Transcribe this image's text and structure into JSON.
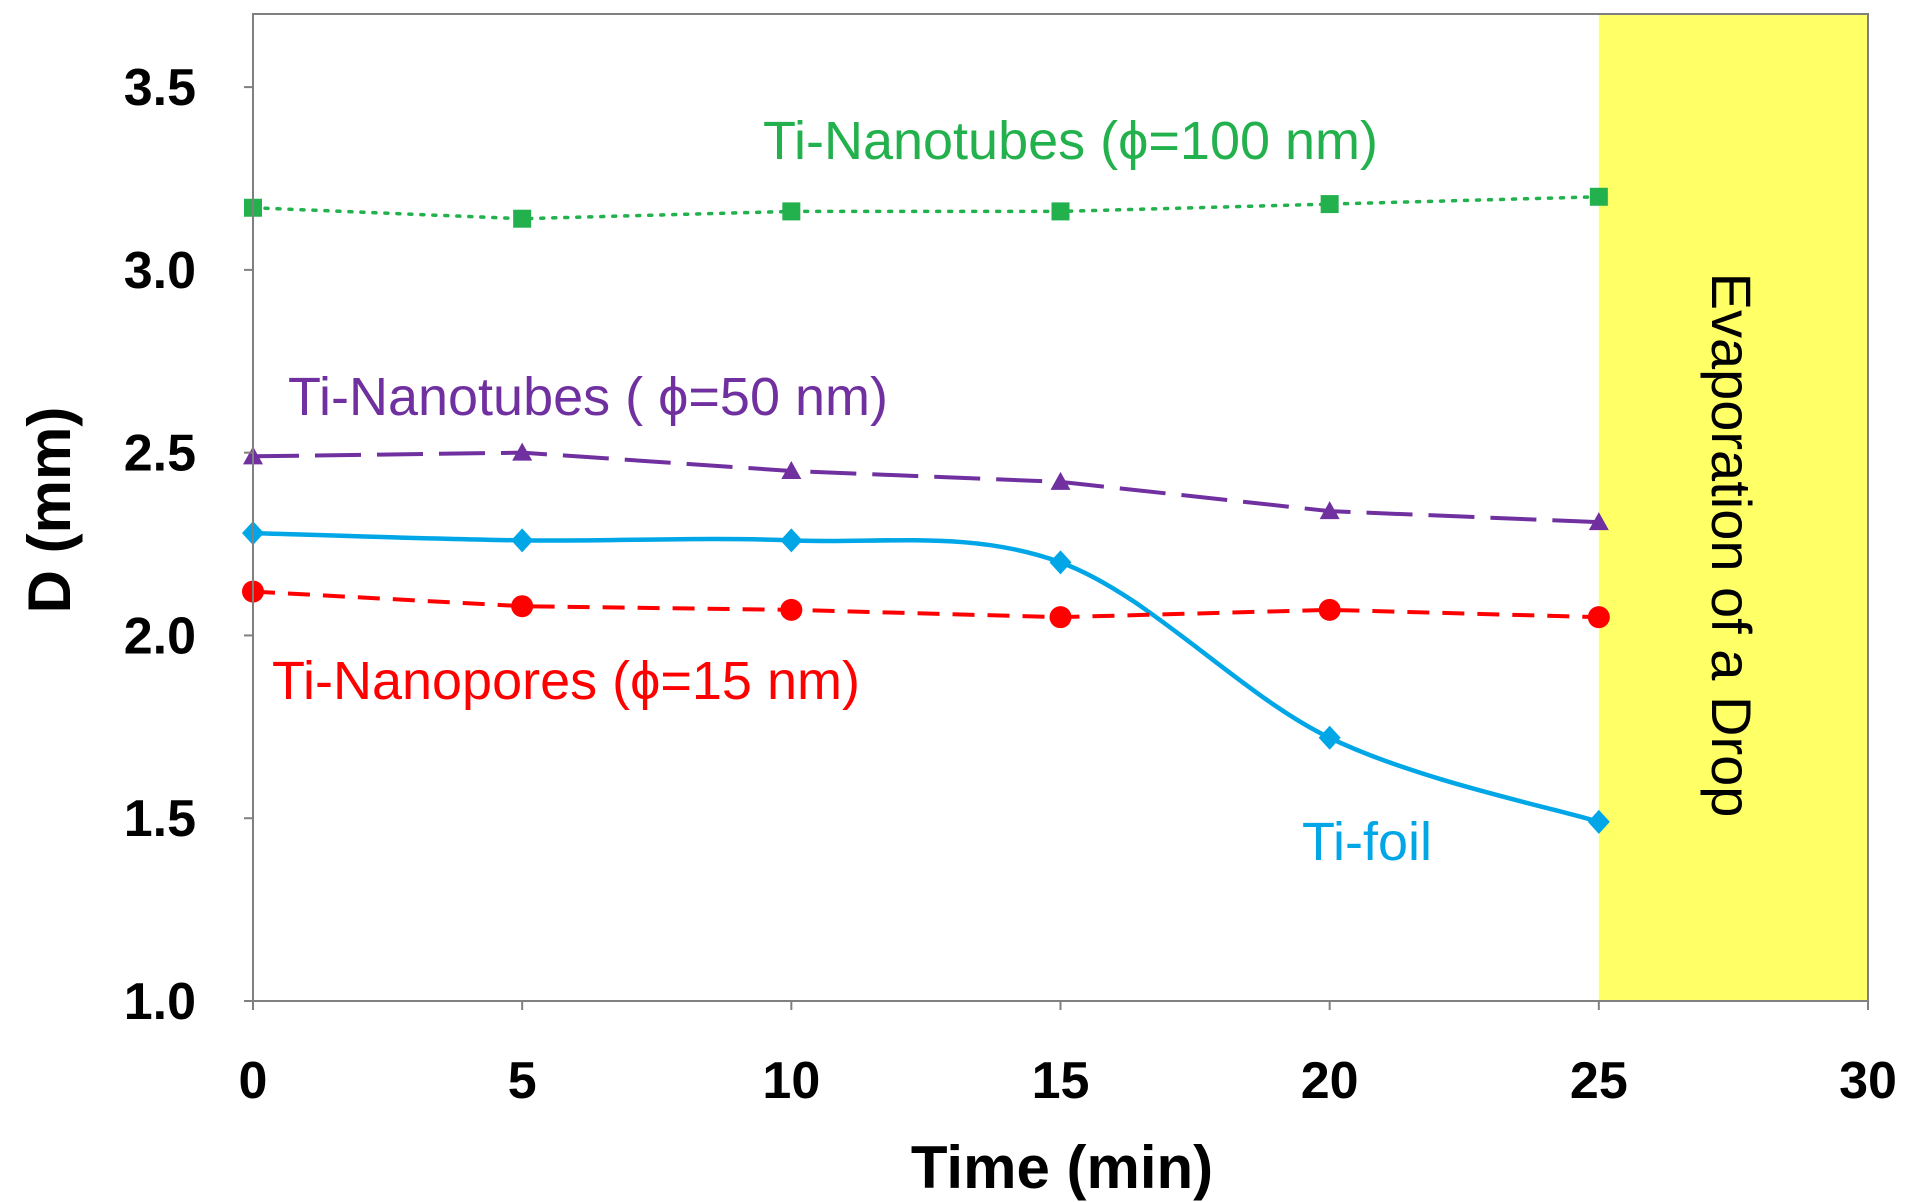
{
  "chart_data": {
    "type": "line",
    "title": "",
    "xlabel": "Time (min)",
    "ylabel": "D (mm)",
    "xlim": [
      0,
      30
    ],
    "ylim": [
      1.0,
      3.7
    ],
    "xticks": [
      "0",
      "5",
      "10",
      "15",
      "20",
      "25",
      "30"
    ],
    "yticks": [
      "1.0",
      "1.5",
      "2.0",
      "2.5",
      "3.0",
      "3.5"
    ],
    "grid": false,
    "legend": "none",
    "shaded_band": {
      "label": "Evaporation of a Drop",
      "x_from": 25,
      "x_to": 30,
      "color": "#ffff66"
    },
    "series": [
      {
        "name": "Ti-Nanotubes (ϕ=100 nm)",
        "color": "#22b14c",
        "line_style": "dotted",
        "marker": "square",
        "x": [
          0,
          5,
          10,
          15,
          20,
          25
        ],
        "values": [
          3.17,
          3.14,
          3.16,
          3.16,
          3.18,
          3.2
        ]
      },
      {
        "name": "Ti-Nanotubes ( ϕ=50 nm)",
        "color": "#7030a0",
        "line_style": "long-dash",
        "marker": "triangle",
        "x": [
          0,
          5,
          10,
          15,
          20,
          25
        ],
        "values": [
          2.49,
          2.5,
          2.45,
          2.42,
          2.34,
          2.31
        ]
      },
      {
        "name": "Ti-foil",
        "color": "#00a6e6",
        "line_style": "solid-smooth",
        "marker": "diamond",
        "x": [
          0,
          5,
          10,
          15,
          20,
          25
        ],
        "values": [
          2.28,
          2.26,
          2.26,
          2.2,
          1.72,
          1.49
        ]
      },
      {
        "name": "Ti-Nanopores (ϕ=15 nm)",
        "color": "#ff0000",
        "line_style": "dashed",
        "marker": "circle",
        "x": [
          0,
          5,
          10,
          15,
          20,
          25
        ],
        "values": [
          2.12,
          2.08,
          2.07,
          2.05,
          2.07,
          2.05
        ]
      }
    ]
  }
}
